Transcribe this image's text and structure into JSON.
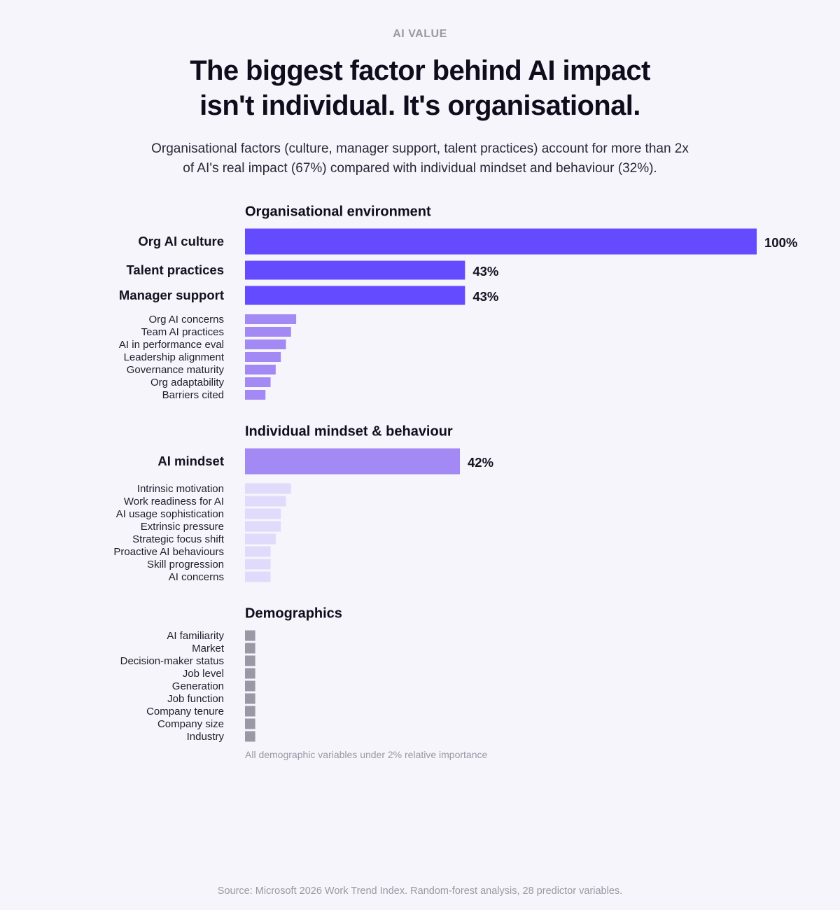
{
  "header": {
    "eyebrow": "AI VALUE",
    "title_line1": "The biggest factor behind AI impact",
    "title_line2": "isn't individual. It's organisational.",
    "subtitle_line1": "Organisational factors (culture, manager support, talent practices) account for more than 2x",
    "subtitle_line2": "of AI's real impact (67%) compared with individual mindset and behaviour (32%)."
  },
  "chart_data": {
    "type": "bar",
    "orientation": "horizontal",
    "value_unit": "%",
    "xlim": [
      0,
      100
    ],
    "grid": false,
    "groups": [
      {
        "title": "Organisational environment",
        "items": [
          {
            "label": "Org AI culture",
            "value": 100,
            "value_label": "100%",
            "emphasis": true,
            "color": "#654bff"
          },
          {
            "label": "Talent practices",
            "value": 43,
            "value_label": "43%",
            "emphasis": true,
            "color": "#654bff"
          },
          {
            "label": "Manager support",
            "value": 43,
            "value_label": "43%",
            "emphasis": true,
            "color": "#654bff"
          },
          {
            "label": "Org AI concerns",
            "value": 10,
            "color": "#a389f4"
          },
          {
            "label": "Team AI practices",
            "value": 9,
            "color": "#a389f4"
          },
          {
            "label": "AI in performance eval",
            "value": 8,
            "color": "#a389f4"
          },
          {
            "label": "Leadership alignment",
            "value": 7,
            "color": "#a389f4"
          },
          {
            "label": "Governance maturity",
            "value": 6,
            "color": "#a389f4"
          },
          {
            "label": "Org adaptability",
            "value": 5,
            "color": "#a389f4"
          },
          {
            "label": "Barriers cited",
            "value": 4,
            "color": "#a389f4"
          }
        ]
      },
      {
        "title": "Individual mindset & behaviour",
        "items": [
          {
            "label": "AI mindset",
            "value": 42,
            "value_label": "42%",
            "emphasis": true,
            "color": "#a389f4"
          },
          {
            "label": "Intrinsic motivation",
            "value": 9,
            "color": "#e0dbfb"
          },
          {
            "label": "Work readiness for AI",
            "value": 8,
            "color": "#e0dbfb"
          },
          {
            "label": "AI usage sophistication",
            "value": 7,
            "color": "#e0dbfb"
          },
          {
            "label": "Extrinsic pressure",
            "value": 7,
            "color": "#e0dbfb"
          },
          {
            "label": "Strategic focus shift",
            "value": 6,
            "color": "#e0dbfb"
          },
          {
            "label": "Proactive AI behaviours",
            "value": 5,
            "color": "#e0dbfb"
          },
          {
            "label": "Skill progression",
            "value": 5,
            "color": "#e0dbfb"
          },
          {
            "label": "AI concerns",
            "value": 5,
            "color": "#e0dbfb"
          }
        ]
      },
      {
        "title": "Demographics",
        "items": [
          {
            "label": "AI familiarity",
            "value": 2,
            "color": "#9a98a4"
          },
          {
            "label": "Market",
            "value": 2,
            "color": "#9a98a4"
          },
          {
            "label": "Decision-maker status",
            "value": 2,
            "color": "#9a98a4"
          },
          {
            "label": "Job level",
            "value": 2,
            "color": "#9a98a4"
          },
          {
            "label": "Generation",
            "value": 2,
            "color": "#9a98a4"
          },
          {
            "label": "Job function",
            "value": 2,
            "color": "#9a98a4"
          },
          {
            "label": "Company tenure",
            "value": 2,
            "color": "#9a98a4"
          },
          {
            "label": "Company size",
            "value": 2,
            "color": "#9a98a4"
          },
          {
            "label": "Industry",
            "value": 2,
            "color": "#9a98a4"
          }
        ]
      }
    ]
  },
  "footnote": "All demographic variables under 2% relative importance",
  "source": "Source: Microsoft 2026 Work Trend Index. Random-forest analysis, 28 predictor variables."
}
